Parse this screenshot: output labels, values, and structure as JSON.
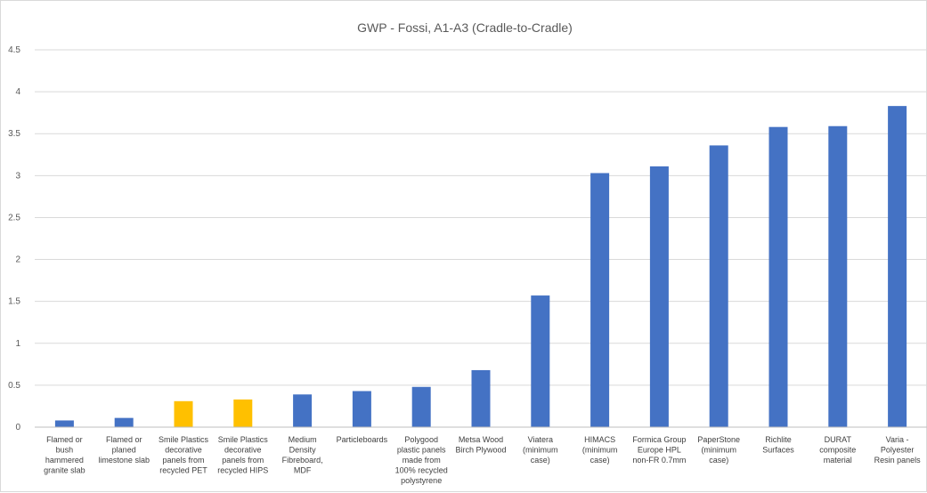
{
  "chart_data": {
    "type": "bar",
    "title": "GWP - Fossi, A1-A3 (Cradle-to-Cradle)",
    "xlabel": "",
    "ylabel": "",
    "ylim": [
      0,
      4.5
    ],
    "yticks": [
      "0",
      "0.5",
      "1",
      "1.5",
      "2",
      "2.5",
      "3",
      "3.5",
      "4",
      "4.5"
    ],
    "grid": true,
    "legend": "none",
    "categories": [
      [
        "Flamed or",
        "bush",
        "hammered",
        "granite slab"
      ],
      [
        "Flamed or",
        "planed",
        "limestone slab"
      ],
      [
        "Smile Plastics",
        "decorative",
        "panels from",
        "recycled PET"
      ],
      [
        "Smile Plastics",
        "decorative",
        "panels from",
        "recycled HIPS"
      ],
      [
        "Medium",
        "Density",
        "Fibreboard,",
        "MDF"
      ],
      [
        "Particleboards"
      ],
      [
        "Polygood",
        "plastic panels",
        "made from",
        "100% recycled",
        "polystyrene"
      ],
      [
        "Metsa Wood",
        "Birch Plywood"
      ],
      [
        "Viatera",
        "(minimum",
        "case)"
      ],
      [
        "HIMACS",
        "(minimum",
        "case)"
      ],
      [
        "Formica Group",
        "Europe HPL",
        "non-FR 0.7mm"
      ],
      [
        "PaperStone",
        "(minimum",
        "case)"
      ],
      [
        "Richlite",
        "Surfaces"
      ],
      [
        "DURAT",
        "composite",
        "material"
      ],
      [
        "Varia -",
        "Polyester",
        "Resin panels"
      ]
    ],
    "values": [
      0.08,
      0.11,
      0.31,
      0.33,
      0.39,
      0.43,
      0.48,
      0.68,
      1.57,
      3.03,
      3.11,
      3.36,
      3.58,
      3.59,
      3.83
    ],
    "colors": [
      "#4472c4",
      "#4472c4",
      "#ffc000",
      "#ffc000",
      "#4472c4",
      "#4472c4",
      "#4472c4",
      "#4472c4",
      "#4472c4",
      "#4472c4",
      "#4472c4",
      "#4472c4",
      "#4472c4",
      "#4472c4",
      "#4472c4"
    ],
    "grid_color": "#d9d9d9",
    "axis_color": "#bfbfbf"
  }
}
